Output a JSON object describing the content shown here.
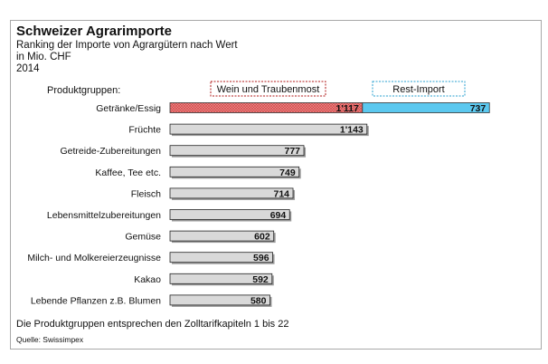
{
  "title": "Schweizer Agrarimporte",
  "subtitle": "Ranking der Importe von Agrargütern nach Wert",
  "unit": "in Mio. CHF",
  "year": "2014",
  "footnote": "Die Produktgruppen entsprechen den Zolltarifkapiteln 1 bis 22",
  "source": "Quelle: Swissimpex",
  "colors": {
    "bar": "#d9d9d9",
    "wine": "#e87c7c",
    "wine_border": "#b01818",
    "rest": "#5bc8ef",
    "rest_border": "#2aa0d0"
  },
  "chart_data": {
    "type": "bar",
    "orientation": "horizontal",
    "category_header": "Produktgruppen:",
    "categories": [
      "Getränke/Essig",
      "Früchte",
      "Getreide-Zubereitungen",
      "Kaffee, Tee etc.",
      "Fleisch",
      "Lebensmittelzubereitungen",
      "Gemüse",
      "Milch- und Molkereierzeugnisse",
      "Kakao",
      "Lebende Pflanzen z.B. Blumen"
    ],
    "values": [
      null,
      1143,
      777,
      749,
      714,
      694,
      602,
      596,
      592,
      580
    ],
    "labels": [
      null,
      "1'143",
      "777",
      "749",
      "714",
      "694",
      "602",
      "596",
      "592",
      "580"
    ],
    "stacked": {
      "category": "Getränke/Essig",
      "series": [
        {
          "name": "Wein und Traubenmost",
          "value": 1117,
          "label": "1'117"
        },
        {
          "name": "Rest-Import",
          "value": 737,
          "label": "737"
        }
      ]
    },
    "legend": [
      "Wein und Traubenmost",
      "Rest-Import"
    ],
    "xlim": [
      0,
      1900
    ],
    "grid": false
  }
}
